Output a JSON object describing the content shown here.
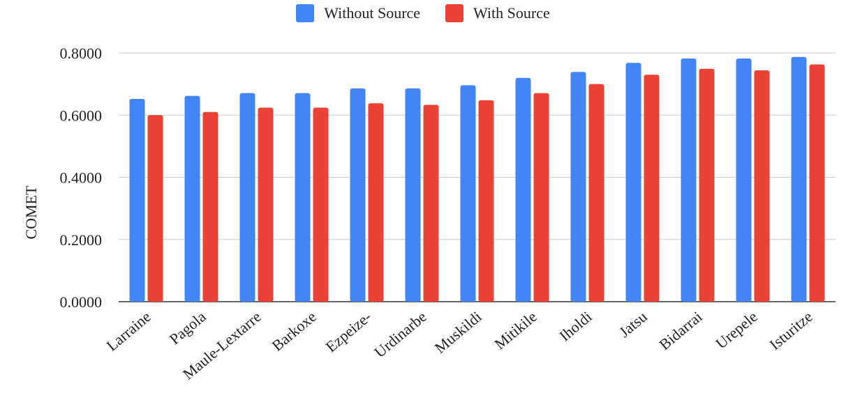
{
  "chart_data": {
    "type": "bar",
    "title": "",
    "xlabel": "",
    "ylabel": "COMET",
    "ylim": [
      0,
      0.8
    ],
    "yticks": [
      "0.0000",
      "0.2000",
      "0.4000",
      "0.6000",
      "0.8000"
    ],
    "grid": true,
    "legend_position": "top-center",
    "categories": [
      "Larraine",
      "Pagola",
      "Maule-Lextarre",
      "Barkoxe",
      "Ezpeize-",
      "Urdinarbe",
      "Muskildi",
      "Mitikile",
      "Iholdi",
      "Jatsu",
      "Bidarrai",
      "Urepele",
      "Isturitze"
    ],
    "series": [
      {
        "name": "Without Source",
        "color": "#4285F4",
        "values": [
          0.652,
          0.662,
          0.671,
          0.671,
          0.686,
          0.686,
          0.696,
          0.72,
          0.739,
          0.768,
          0.782,
          0.782,
          0.787
        ]
      },
      {
        "name": "With Source",
        "color": "#EA4335",
        "values": [
          0.6,
          0.61,
          0.624,
          0.624,
          0.638,
          0.633,
          0.648,
          0.671,
          0.7,
          0.73,
          0.749,
          0.744,
          0.763
        ]
      }
    ]
  }
}
